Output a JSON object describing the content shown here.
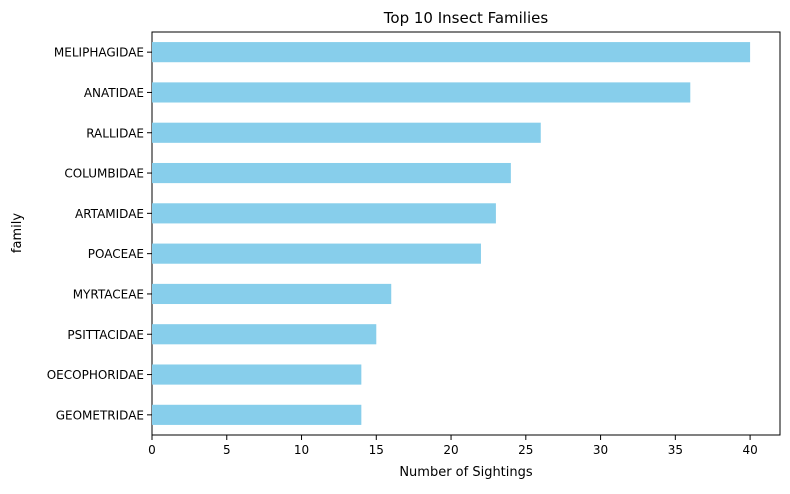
{
  "chart_data": {
    "type": "bar",
    "orientation": "horizontal",
    "title": "Top 10 Insect Families",
    "xlabel": "Number of Sightings",
    "ylabel": "family",
    "categories": [
      "MELIPHAGIDAE",
      "ANATIDAE",
      "RALLIDAE",
      "COLUMBIDAE",
      "ARTAMIDAE",
      "POACEAE",
      "MYRTACEAE",
      "PSITTACIDAE",
      "OECOPHORIDAE",
      "GEOMETRIDAE"
    ],
    "values": [
      40,
      36,
      26,
      24,
      23,
      22,
      16,
      15,
      14,
      14
    ],
    "xlim": [
      0,
      42
    ],
    "xticks": [
      "0",
      "5",
      "10",
      "15",
      "20",
      "25",
      "30",
      "35",
      "40"
    ],
    "bar_color": "#87ceeb",
    "grid": false,
    "legend": false
  }
}
